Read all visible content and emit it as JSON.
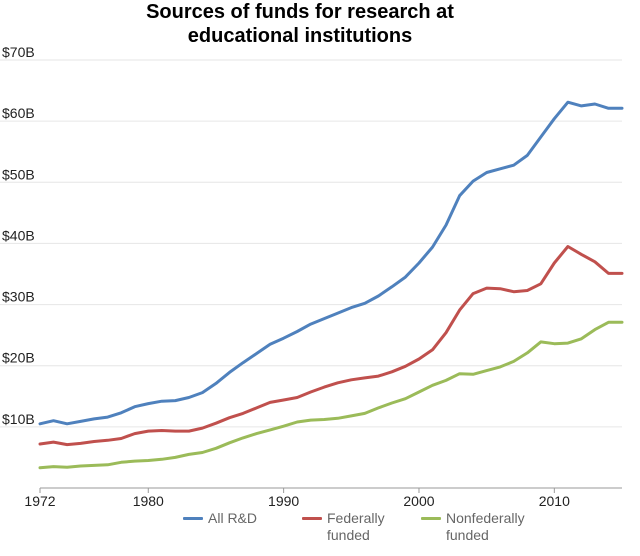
{
  "chart_data": {
    "type": "line",
    "title_lines": [
      "Sources of funds for research at",
      "educational institutions"
    ],
    "xlabel": "",
    "ylabel": "",
    "xlim": [
      1972,
      2015
    ],
    "ylim": [
      0,
      70
    ],
    "y_ticks": [
      10,
      20,
      30,
      40,
      50,
      60,
      70
    ],
    "y_tick_labels": [
      "$10B",
      "$20B",
      "$30B",
      "$40B",
      "$50B",
      "$60B",
      "$70B"
    ],
    "x_ticks": [
      1972,
      1980,
      1990,
      2000,
      2010
    ],
    "x_tick_labels": [
      "1972",
      "1980",
      "1990",
      "2000",
      "2010"
    ],
    "grid": true,
    "legend_position": "bottom",
    "x": [
      1972,
      1973,
      1974,
      1975,
      1976,
      1977,
      1978,
      1979,
      1980,
      1981,
      1982,
      1983,
      1984,
      1985,
      1986,
      1987,
      1988,
      1989,
      1990,
      1991,
      1992,
      1993,
      1994,
      1995,
      1996,
      1997,
      1998,
      1999,
      2000,
      2001,
      2002,
      2003,
      2004,
      2005,
      2006,
      2007,
      2008,
      2009,
      2010,
      2011,
      2012,
      2013,
      2014,
      2015
    ],
    "series": [
      {
        "name": "All R&D",
        "color": "#4f81bd",
        "values": [
          10.5,
          11.0,
          10.5,
          10.9,
          11.3,
          11.6,
          12.3,
          13.3,
          13.8,
          14.2,
          14.3,
          14.8,
          15.6,
          17.1,
          18.9,
          20.5,
          22.0,
          23.5,
          24.5,
          25.6,
          26.8,
          27.7,
          28.6,
          29.5,
          30.2,
          31.4,
          32.9,
          34.5,
          36.8,
          39.4,
          43.0,
          47.8,
          50.2,
          51.6,
          52.2,
          52.8,
          54.4,
          57.4,
          60.4,
          63.1,
          62.5,
          62.8,
          62.1,
          62.1
        ]
      },
      {
        "name": "Federally funded",
        "label_lines": [
          "Federally",
          "funded"
        ],
        "color": "#c0504d",
        "values": [
          7.2,
          7.5,
          7.1,
          7.3,
          7.6,
          7.8,
          8.1,
          8.9,
          9.3,
          9.4,
          9.3,
          9.3,
          9.8,
          10.6,
          11.5,
          12.2,
          13.1,
          14.0,
          14.4,
          14.8,
          15.7,
          16.5,
          17.2,
          17.7,
          18.0,
          18.3,
          19.0,
          19.9,
          21.1,
          22.6,
          25.4,
          29.1,
          31.8,
          32.7,
          32.6,
          32.1,
          32.3,
          33.4,
          36.8,
          39.5,
          38.2,
          37.0,
          35.1,
          35.1
        ]
      },
      {
        "name": "Nonfederally funded",
        "label_lines": [
          "Nonfederally",
          "funded"
        ],
        "color": "#9bbb59",
        "values": [
          3.3,
          3.5,
          3.4,
          3.6,
          3.7,
          3.8,
          4.2,
          4.4,
          4.5,
          4.7,
          5.0,
          5.5,
          5.8,
          6.5,
          7.4,
          8.2,
          8.9,
          9.5,
          10.1,
          10.8,
          11.1,
          11.2,
          11.4,
          11.8,
          12.2,
          13.1,
          13.9,
          14.6,
          15.7,
          16.8,
          17.6,
          18.7,
          18.6,
          19.2,
          19.8,
          20.7,
          22.1,
          23.9,
          23.6,
          23.7,
          24.4,
          25.9,
          27.1,
          27.1
        ]
      }
    ]
  }
}
